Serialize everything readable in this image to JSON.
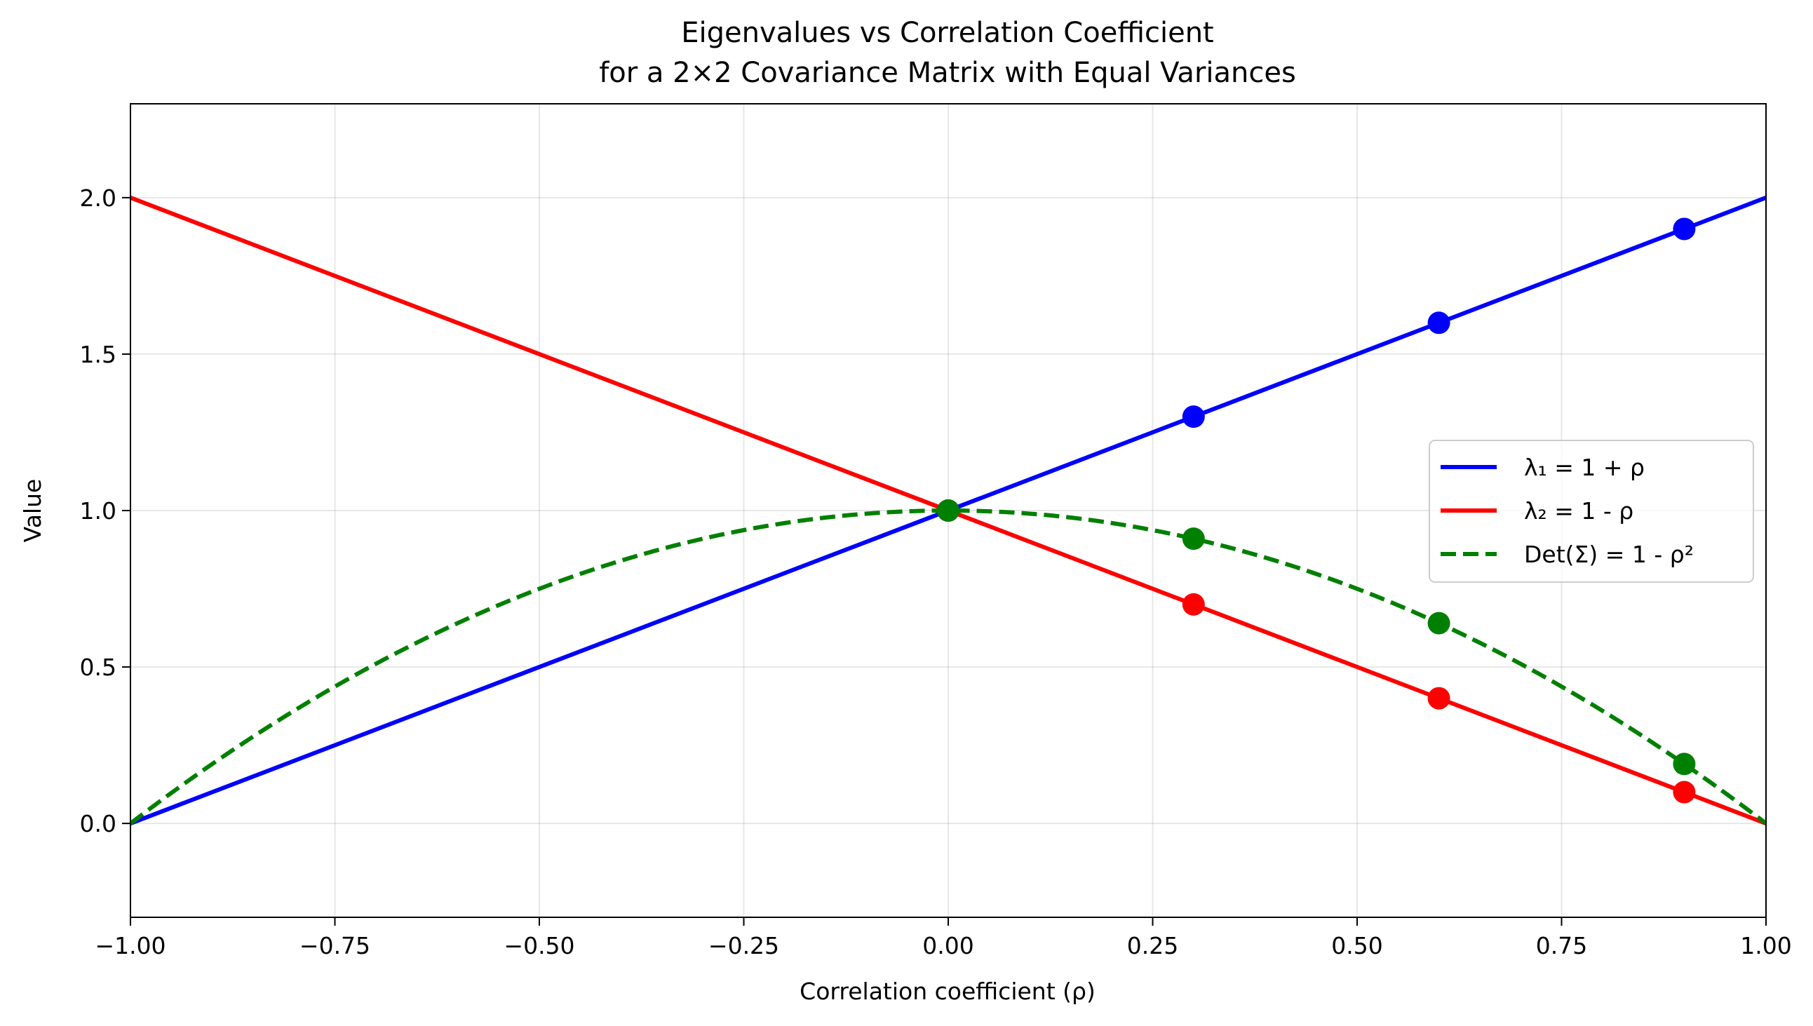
{
  "chart_data": {
    "type": "line",
    "title_lines": [
      "Eigenvalues vs Correlation Coefficient",
      "for a 2×2 Covariance Matrix with Equal Variances"
    ],
    "xlabel": "Correlation coefficient (ρ)",
    "ylabel": "Value",
    "xlim": [
      -1.0,
      1.0
    ],
    "ylim": [
      -0.3,
      2.3
    ],
    "xticks": [
      -1.0,
      -0.75,
      -0.5,
      -0.25,
      0.0,
      0.25,
      0.5,
      0.75,
      1.0
    ],
    "xtick_labels": [
      "−1.00",
      "−0.75",
      "−0.50",
      "−0.25",
      "0.00",
      "0.25",
      "0.50",
      "0.75",
      "1.00"
    ],
    "yticks": [
      0.0,
      0.5,
      1.0,
      1.5,
      2.0
    ],
    "ytick_labels": [
      "0.0",
      "0.5",
      "1.0",
      "1.5",
      "2.0"
    ],
    "grid": true,
    "legend_position": "center-right",
    "series": [
      {
        "name": "λ₁ = 1 + ρ",
        "color": "#0000ff",
        "style": "solid",
        "line_x": [
          -1.0,
          1.0
        ],
        "line_y": [
          0.0,
          2.0
        ],
        "marker_x": [
          0.0,
          0.3,
          0.6,
          0.9
        ],
        "marker_y": [
          1.0,
          1.3,
          1.6,
          1.9
        ]
      },
      {
        "name": "λ₂ = 1 - ρ",
        "color": "#ff0000",
        "style": "solid",
        "line_x": [
          -1.0,
          1.0
        ],
        "line_y": [
          2.0,
          0.0
        ],
        "marker_x": [
          0.0,
          0.3,
          0.6,
          0.9
        ],
        "marker_y": [
          1.0,
          0.7,
          0.4,
          0.1
        ]
      },
      {
        "name": "Det(Σ) = 1 - ρ²",
        "color": "#008000",
        "style": "dashed",
        "function": "1 - x^2",
        "marker_x": [
          0.0,
          0.3,
          0.6,
          0.9
        ],
        "marker_y": [
          1.0,
          0.91,
          0.64,
          0.19
        ]
      }
    ]
  }
}
